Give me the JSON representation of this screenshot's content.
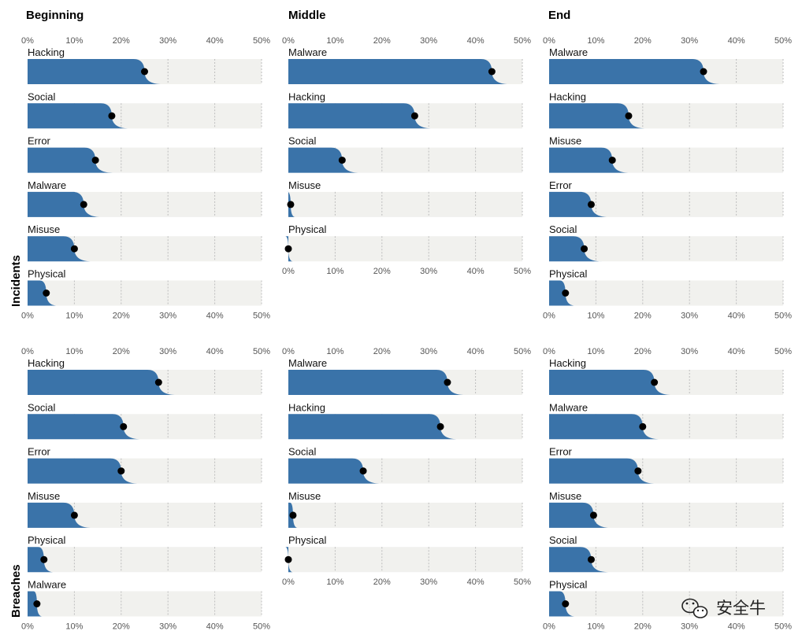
{
  "chart_data": {
    "type": "bar",
    "columns": [
      "Beginning",
      "Middle",
      "End"
    ],
    "rows": [
      "Incidents",
      "Breaches"
    ],
    "axis_ticks": [
      "0%",
      "10%",
      "20%",
      "30%",
      "40%",
      "50%"
    ],
    "xlim": [
      0,
      50
    ],
    "grid": true,
    "colors": {
      "bar": "#3a73a9",
      "track": "#f1f1ee",
      "dot": "#000000",
      "grid": "#bdbdbd"
    },
    "panels": [
      {
        "row": "Incidents",
        "column": "Beginning",
        "categories": [
          "Hacking",
          "Social",
          "Error",
          "Malware",
          "Misuse",
          "Physical"
        ],
        "values": [
          25,
          18,
          14.5,
          12,
          10,
          4
        ]
      },
      {
        "row": "Incidents",
        "column": "Middle",
        "categories": [
          "Malware",
          "Hacking",
          "Social",
          "Misuse",
          "Physical"
        ],
        "values": [
          43.5,
          27,
          11.5,
          0.5,
          0
        ]
      },
      {
        "row": "Incidents",
        "column": "End",
        "categories": [
          "Malware",
          "Hacking",
          "Misuse",
          "Error",
          "Social",
          "Physical"
        ],
        "values": [
          33,
          17,
          13.5,
          9,
          7.5,
          3.5
        ]
      },
      {
        "row": "Breaches",
        "column": "Beginning",
        "categories": [
          "Hacking",
          "Social",
          "Error",
          "Misuse",
          "Physical",
          "Malware"
        ],
        "values": [
          28,
          20.5,
          20,
          10,
          3.5,
          2
        ]
      },
      {
        "row": "Breaches",
        "column": "Middle",
        "categories": [
          "Malware",
          "Hacking",
          "Social",
          "Misuse",
          "Physical"
        ],
        "values": [
          34,
          32.5,
          16,
          1,
          0
        ]
      },
      {
        "row": "Breaches",
        "column": "End",
        "categories": [
          "Hacking",
          "Malware",
          "Error",
          "Misuse",
          "Social",
          "Physical"
        ],
        "values": [
          22.5,
          20,
          19,
          9.5,
          9,
          3.5
        ]
      }
    ]
  },
  "watermark": {
    "text": "安全牛",
    "icon": "wechat-icon"
  }
}
